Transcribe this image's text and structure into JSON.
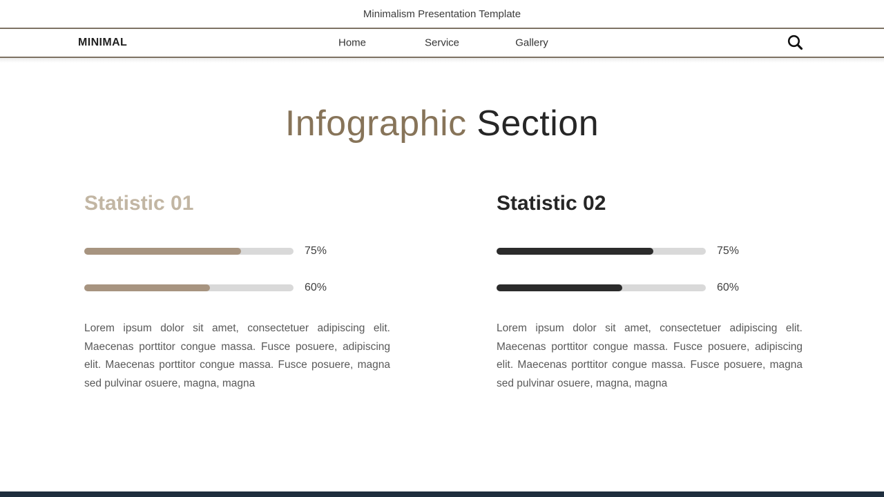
{
  "topbar": {
    "title": "Minimalism Presentation Template"
  },
  "nav": {
    "brand": "MINIMAL",
    "items": [
      {
        "label": "Home"
      },
      {
        "label": "Service"
      },
      {
        "label": "Gallery"
      }
    ],
    "search_icon": "magnifier"
  },
  "heading": {
    "accent": "Infographic",
    "rest": "Section",
    "accent_color": "#877459",
    "rest_color": "#262626"
  },
  "columns": [
    {
      "title": "Statistic 01",
      "title_color": "#c2b6a3",
      "bar_color": "#a79480",
      "track_color": "#d9d9d9",
      "bars": [
        {
          "label": "75%",
          "percent": 75
        },
        {
          "label": "60%",
          "percent": 60
        }
      ],
      "paragraph": "Lorem ipsum dolor sit amet, consectetuer adipiscing elit. Maecenas porttitor congue massa. Fusce posuere, adipiscing elit. Maecenas porttitor congue massa. Fusce posuere, magna sed pulvinar osuere, magna, magna"
    },
    {
      "title": "Statistic 02",
      "title_color": "#262626",
      "bar_color": "#2b2b2b",
      "track_color": "#d9d9d9",
      "bars": [
        {
          "label": "75%",
          "percent": 75
        },
        {
          "label": "60%",
          "percent": 60
        }
      ],
      "paragraph": "Lorem ipsum dolor sit amet, consectetuer adipiscing elit. Maecenas porttitor congue massa. Fusce posuere, adipiscing elit. Maecenas porttitor congue massa. Fusce posuere, magna sed pulvinar osuere, magna, magna"
    }
  ],
  "chart_data": [
    {
      "type": "bar",
      "orientation": "horizontal",
      "title": "Statistic 01",
      "categories": [
        "bar-1",
        "bar-2"
      ],
      "values": [
        75,
        60
      ],
      "value_labels": [
        "75%",
        "60%"
      ],
      "bar_color": "#a79480",
      "track_color": "#d9d9d9"
    },
    {
      "type": "bar",
      "orientation": "horizontal",
      "title": "Statistic 02",
      "categories": [
        "bar-1",
        "bar-2"
      ],
      "values": [
        75,
        60
      ],
      "value_labels": [
        "75%",
        "60%"
      ],
      "bar_color": "#2b2b2b",
      "track_color": "#d9d9d9"
    }
  ],
  "footer": {
    "bar_color": "#1f2e3e"
  },
  "rule_color": "#7d7263"
}
